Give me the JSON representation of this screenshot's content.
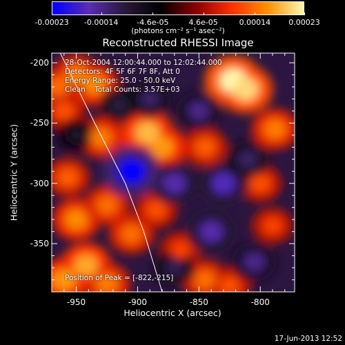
{
  "colorbar": {
    "ticks": [
      "-0.00023",
      "-0.00014",
      "-4.6e-05",
      "4.6e-05",
      "0.00014",
      "0.00023"
    ],
    "tick_values": [
      -0.00023,
      -0.00014,
      -4.6e-05,
      4.6e-05,
      0.00014,
      0.00023
    ],
    "range": [
      -0.00023,
      0.00023
    ],
    "unit_label": "(photons cm⁻² s⁻¹ asec⁻²)"
  },
  "chart_data": {
    "type": "heatmap",
    "title": "Reconstructed RHESSI Image",
    "xlabel": "Heliocentric X (arcsec)",
    "ylabel": "Heliocentric Y (arcsec)",
    "xlim": [
      -970,
      -772
    ],
    "ylim": [
      -390,
      -192
    ],
    "xticks": [
      "-950",
      "-900",
      "-850",
      "-800"
    ],
    "xtick_values": [
      -950,
      -900,
      -850,
      -800
    ],
    "yticks": [
      "-200",
      "-250",
      "-300",
      "-350"
    ],
    "ytick_values": [
      -200,
      -250,
      -300,
      -350
    ],
    "colormap": [
      "#0000ff",
      "#5a2db4",
      "#2a1a3a",
      "#000000",
      "#8b0000",
      "#ff3000",
      "#ff9000",
      "#fff8b0"
    ],
    "hotspots": [
      {
        "x": -822,
        "y": -215,
        "value": 0.00023
      },
      {
        "x": -812,
        "y": -222,
        "value": 0.00021
      },
      {
        "x": -935,
        "y": -218,
        "value": 0.00016
      },
      {
        "x": -950,
        "y": -210,
        "value": 0.00015
      },
      {
        "x": -965,
        "y": -220,
        "value": 0.00014
      },
      {
        "x": -960,
        "y": -240,
        "value": 0.00012
      },
      {
        "x": -892,
        "y": -258,
        "value": 0.00019
      },
      {
        "x": -880,
        "y": -270,
        "value": 0.00017
      },
      {
        "x": -788,
        "y": -255,
        "value": 0.00015
      },
      {
        "x": -845,
        "y": -270,
        "value": 0.00013
      },
      {
        "x": -930,
        "y": -262,
        "value": 0.00015
      },
      {
        "x": -957,
        "y": -295,
        "value": 0.00013
      },
      {
        "x": -950,
        "y": -330,
        "value": 0.00016
      },
      {
        "x": -925,
        "y": -318,
        "value": 0.00014
      },
      {
        "x": -905,
        "y": -342,
        "value": 0.00014
      },
      {
        "x": -885,
        "y": -322,
        "value": 0.00012
      },
      {
        "x": -865,
        "y": -355,
        "value": 0.00011
      },
      {
        "x": -942,
        "y": -368,
        "value": 0.00018
      },
      {
        "x": -960,
        "y": -380,
        "value": 0.00017
      },
      {
        "x": -925,
        "y": -383,
        "value": 0.00015
      },
      {
        "x": -845,
        "y": -380,
        "value": 0.00014
      },
      {
        "x": -825,
        "y": -385,
        "value": 0.00012
      },
      {
        "x": -800,
        "y": -300,
        "value": 0.00012
      },
      {
        "x": -790,
        "y": -335,
        "value": 0.00011
      },
      {
        "x": -870,
        "y": -300,
        "value": -0.00016
      },
      {
        "x": -905,
        "y": -290,
        "value": -0.00023
      },
      {
        "x": -890,
        "y": -230,
        "value": -0.00012
      },
      {
        "x": -850,
        "y": -240,
        "value": -0.00014
      },
      {
        "x": -830,
        "y": -300,
        "value": -0.00017
      },
      {
        "x": -840,
        "y": -340,
        "value": -0.00016
      },
      {
        "x": -805,
        "y": -365,
        "value": -0.00014
      },
      {
        "x": -915,
        "y": -235,
        "value": -0.0001
      },
      {
        "x": -810,
        "y": -280,
        "value": -0.00012
      },
      {
        "x": -870,
        "y": -370,
        "value": -0.00011
      },
      {
        "x": -950,
        "y": -260,
        "value": -8e-05
      }
    ],
    "limb_line": [
      [
        -963,
        -192
      ],
      [
        -935,
        -250
      ],
      [
        -910,
        -300
      ],
      [
        -895,
        -340
      ],
      [
        -880,
        -390
      ]
    ],
    "annotations": [
      "28-Oct-2004 12:00:44.000 to 12:02:44.000",
      "Detectors: 4F 5F 6F 7F 8F, Att 0",
      "Energy Range: 25.0 - 50.0 keV",
      "Clean    Total Counts: 3.57E+03"
    ],
    "peak_label": "Position of Peak = [-822,-215]",
    "peak": [
      -822,
      -215
    ]
  },
  "footer": {
    "date": "17-Jun-2013 12:52"
  }
}
